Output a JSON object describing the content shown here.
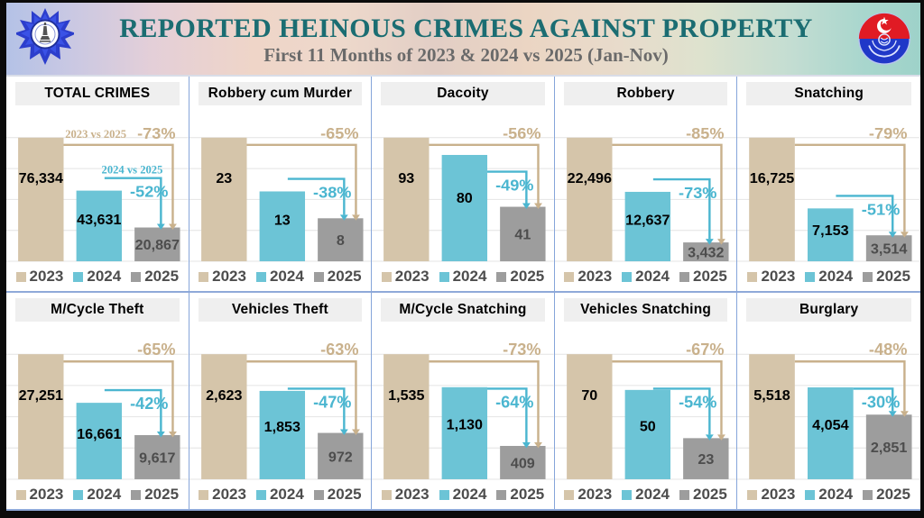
{
  "header": {
    "title": "REPORTED HEINOUS CRIMES AGAINST PROPERTY",
    "subtitle": "First 11 Months of 2023 & 2024 vs 2025 (Jan-Nov)",
    "left_logo": "capital-city-police-badge",
    "right_logo": "punjab-police-emblem"
  },
  "colors": {
    "title": "#1b6d72",
    "subtitle": "#6a6a6a",
    "bar_2023": "#d5c5aa",
    "bar_2024": "#6cc4d6",
    "bar_2025": "#9d9d9d",
    "pct_2023": "#c9b18c",
    "pct_2024": "#4bb6d0",
    "value_label": "#000000",
    "value_label_2025": "#4d4d4d",
    "legend_text": "#4d4d4d",
    "grid": "#e4e4e4",
    "divider": "#86a5da"
  },
  "legend": {
    "years": [
      "2023",
      "2024",
      "2025"
    ],
    "colors": [
      "#d5c5aa",
      "#6cc4d6",
      "#9d9d9d"
    ]
  },
  "chart_data": [
    {
      "type": "bar",
      "title": "TOTAL CRIMES",
      "categories": [
        "2023",
        "2024",
        "2025"
      ],
      "values": [
        76334,
        43631,
        20867
      ],
      "value_labels": [
        "76,334",
        "43,631",
        "20,867"
      ],
      "pct_2023_vs_2025": "-73%",
      "pct_2024_vs_2025": "-52%",
      "comparison_labels": [
        "2023 vs 2025",
        "2024 vs 2025"
      ]
    },
    {
      "type": "bar",
      "title": "Robbery cum Murder",
      "categories": [
        "2023",
        "2024",
        "2025"
      ],
      "values": [
        23,
        13,
        8
      ],
      "value_labels": [
        "23",
        "13",
        "8"
      ],
      "pct_2023_vs_2025": "-65%",
      "pct_2024_vs_2025": "-38%"
    },
    {
      "type": "bar",
      "title": "Dacoity",
      "categories": [
        "2023",
        "2024",
        "2025"
      ],
      "values": [
        93,
        80,
        41
      ],
      "value_labels": [
        "93",
        "80",
        "41"
      ],
      "pct_2023_vs_2025": "-56%",
      "pct_2024_vs_2025": "-49%"
    },
    {
      "type": "bar",
      "title": "Robbery",
      "categories": [
        "2023",
        "2024",
        "2025"
      ],
      "values": [
        22496,
        12637,
        3432
      ],
      "value_labels": [
        "22,496",
        "12,637",
        "3,432"
      ],
      "pct_2023_vs_2025": "-85%",
      "pct_2024_vs_2025": "-73%"
    },
    {
      "type": "bar",
      "title": "Snatching",
      "categories": [
        "2023",
        "2024",
        "2025"
      ],
      "values": [
        16725,
        7153,
        3514
      ],
      "value_labels": [
        "16,725",
        "7,153",
        "3,514"
      ],
      "pct_2023_vs_2025": "-79%",
      "pct_2024_vs_2025": "-51%"
    },
    {
      "type": "bar",
      "title": "M/Cycle Theft",
      "categories": [
        "2023",
        "2024",
        "2025"
      ],
      "values": [
        27251,
        16661,
        9617
      ],
      "value_labels": [
        "27,251",
        "16,661",
        "9,617"
      ],
      "pct_2023_vs_2025": "-65%",
      "pct_2024_vs_2025": "-42%"
    },
    {
      "type": "bar",
      "title": "Vehicles Theft",
      "categories": [
        "2023",
        "2024",
        "2025"
      ],
      "values": [
        2623,
        1853,
        972
      ],
      "value_labels": [
        "2,623",
        "1,853",
        "972"
      ],
      "pct_2023_vs_2025": "-63%",
      "pct_2024_vs_2025": "-47%"
    },
    {
      "type": "bar",
      "title": "M/Cycle Snatching",
      "categories": [
        "2023",
        "2024",
        "2025"
      ],
      "values": [
        1535,
        1130,
        409
      ],
      "value_labels": [
        "1,535",
        "1,130",
        "409"
      ],
      "pct_2023_vs_2025": "-73%",
      "pct_2024_vs_2025": "-64%"
    },
    {
      "type": "bar",
      "title": "Vehicles Snatching",
      "categories": [
        "2023",
        "2024",
        "2025"
      ],
      "values": [
        70,
        50,
        23
      ],
      "value_labels": [
        "70",
        "50",
        "23"
      ],
      "pct_2023_vs_2025": "-67%",
      "pct_2024_vs_2025": "-54%"
    },
    {
      "type": "bar",
      "title": "Burglary",
      "categories": [
        "2023",
        "2024",
        "2025"
      ],
      "values": [
        5518,
        4054,
        2851
      ],
      "value_labels": [
        "5,518",
        "4,054",
        "2,851"
      ],
      "pct_2023_vs_2025": "-48%",
      "pct_2024_vs_2025": "-30%"
    }
  ]
}
